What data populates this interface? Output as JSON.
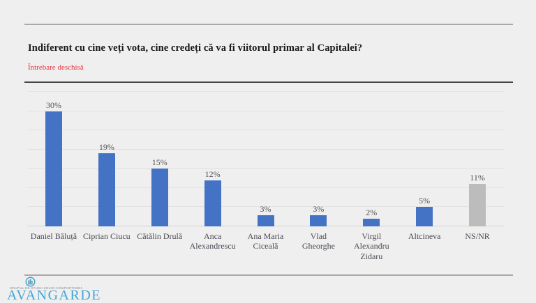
{
  "header": {
    "title": "Indiferent cu cine veți vota, cine credeți că va fi viitorul primar al Capitalei?",
    "subtitle": "Întrebare deschisă"
  },
  "chart_data": {
    "type": "bar",
    "title": "Indiferent cu cine veți vota, cine credeți că va fi viitorul primar al Capitalei?",
    "subtitle": "Întrebare deschisă",
    "categories": [
      "Daniel Băluță",
      "Ciprian Ciucu",
      "Cătălin Drulă",
      "Anca Alexandrescu",
      "Ana Maria Ciceală",
      "Vlad Gheorghe",
      "Virgil Alexandru Zidaru",
      "Altcineva",
      "NS/NR"
    ],
    "values": [
      30,
      19,
      15,
      12,
      3,
      3,
      2,
      5,
      11
    ],
    "labels": [
      "30%",
      "19%",
      "15%",
      "12%",
      "3%",
      "3%",
      "2%",
      "5%",
      "11%"
    ],
    "bar_colors": [
      "#4472c4",
      "#4472c4",
      "#4472c4",
      "#4472c4",
      "#4472c4",
      "#4472c4",
      "#4472c4",
      "#4472c4",
      "#bcbcbc"
    ],
    "xlabel": "",
    "ylabel": "",
    "ylim": [
      0,
      35
    ],
    "grid_step": 5,
    "grid": true,
    "legend": false,
    "value_labels_position": "above-bars"
  },
  "footer": {
    "logo_text": "AVANGARDE",
    "logo_tagline": "GRUPUL DE STUDII SOCIO-COMPORTAMENTALE"
  },
  "colors": {
    "bar_blue": "#4472c4",
    "bar_gray": "#bcbcbc",
    "subtitle_red": "#ec3440",
    "logo_blue": "#3fa6d9",
    "background": "#efefef"
  }
}
